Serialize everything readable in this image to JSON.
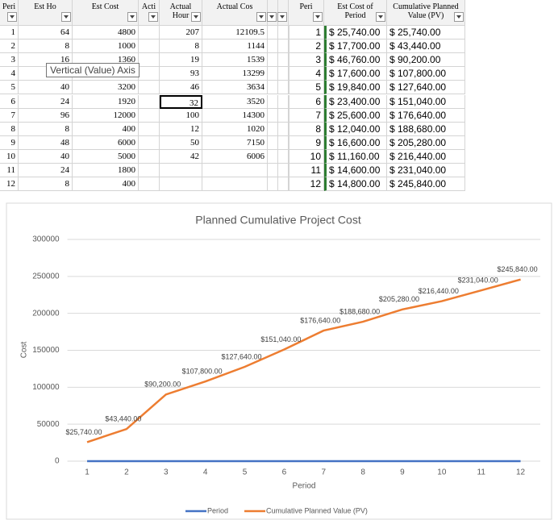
{
  "sheet": {
    "left_headers": [
      "Peri",
      "Est Ho",
      "Est Cost",
      "Acti",
      "Actual Hour",
      "Actual Cos"
    ],
    "left_rows": [
      [
        1,
        64,
        4800,
        null,
        207,
        12109.5
      ],
      [
        2,
        8,
        1000,
        null,
        8,
        1144
      ],
      [
        3,
        16,
        1360,
        null,
        19,
        1539
      ],
      [
        4,
        null,
        null,
        null,
        93,
        13299
      ],
      [
        5,
        40,
        3200,
        null,
        46,
        3634
      ],
      [
        6,
        24,
        1920,
        null,
        32,
        3520
      ],
      [
        7,
        96,
        12000,
        null,
        100,
        14300
      ],
      [
        8,
        8,
        400,
        null,
        12,
        1020
      ],
      [
        9,
        48,
        6000,
        null,
        50,
        7150
      ],
      [
        10,
        40,
        5000,
        null,
        42,
        6006
      ],
      [
        11,
        24,
        1800,
        null,
        null,
        null
      ],
      [
        12,
        8,
        400,
        null,
        null,
        null
      ]
    ],
    "right_headers": [
      "Peri",
      "Est Cost of Period",
      "Cumulative Planned Value (PV)"
    ],
    "right_rows": [
      [
        1,
        "$ 25,740.00",
        "$ 25,740.00"
      ],
      [
        2,
        "$ 17,700.00",
        "$ 43,440.00"
      ],
      [
        3,
        "$ 46,760.00",
        "$ 90,200.00"
      ],
      [
        4,
        "$ 17,600.00",
        "$ 107,800.00"
      ],
      [
        5,
        "$ 19,840.00",
        "$ 127,640.00"
      ],
      [
        6,
        "$ 23,400.00",
        "$ 151,040.00"
      ],
      [
        7,
        "$ 25,600.00",
        "$ 176,640.00"
      ],
      [
        8,
        "$ 12,040.00",
        "$ 188,680.00"
      ],
      [
        9,
        "$ 16,600.00",
        "$ 205,280.00"
      ],
      [
        10,
        "$ 11,160.00",
        "$ 216,440.00"
      ],
      [
        11,
        "$ 14,600.00",
        "$ 231,040.00"
      ],
      [
        12,
        "$ 14,800.00",
        "$ 245,840.00"
      ]
    ],
    "tooltip": "Vertical (Value) Axis"
  },
  "chart_data": {
    "type": "line",
    "title": "Planned Cumulative Project Cost",
    "x_label": "Period",
    "y_label": "Cost",
    "x": [
      1,
      2,
      3,
      4,
      5,
      6,
      7,
      8,
      9,
      10,
      11,
      12
    ],
    "xlim": [
      0.5,
      12.5
    ],
    "xticks": [
      1,
      2,
      3,
      4,
      5,
      6,
      7,
      8,
      9,
      10,
      11,
      12
    ],
    "ylim": [
      0,
      300000
    ],
    "yticks": [
      0,
      50000,
      100000,
      150000,
      200000,
      250000,
      300000
    ],
    "grid": true,
    "series": [
      {
        "name": "Period",
        "color": "#4472c4",
        "values": [
          1,
          2,
          3,
          4,
          5,
          6,
          7,
          8,
          9,
          10,
          11,
          12
        ]
      },
      {
        "name": "Cumulative Planned Value (PV)",
        "color": "#ed7d31",
        "values": [
          25740,
          43440,
          90200,
          107800,
          127640,
          151040,
          176640,
          188680,
          205280,
          216440,
          231040,
          245840
        ],
        "value_labels": [
          "$25,740.00",
          "$43,440.00",
          "$90,200.00",
          "$107,800.00",
          "$127,640.00",
          "$151,040.00",
          "$176,640.00",
          "$188,680.00",
          "$205,280.00",
          "$216,440.00",
          "$231,040.00",
          "$245,840.00"
        ]
      }
    ],
    "legend": "bottom"
  }
}
